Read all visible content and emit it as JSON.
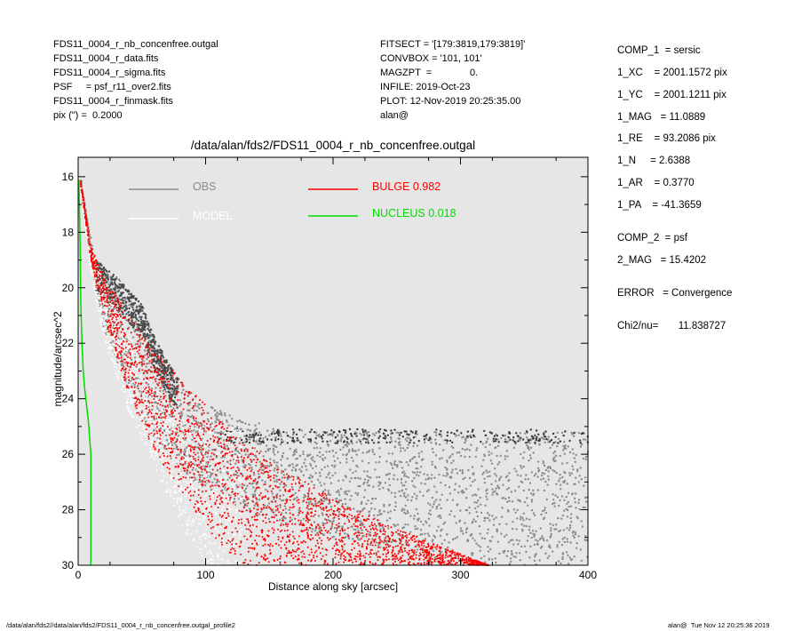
{
  "header": {
    "left": [
      "FDS11_0004_r_nb_concenfree.outgal",
      "FDS11_0004_r_data.fits",
      "FDS11_0004_r_sigma.fits",
      "PSF     = psf_r11_over2.fits",
      "FDS11_0004_r_finmask.fits",
      "pix (\") =  0.2000"
    ],
    "middle": [
      "FITSECT = '[179:3819,179:3819]'",
      "CONVBOX = '101, 101'",
      "MAGZPT  =              0.",
      "INFILE: 2019-Oct-23",
      "PLOT: 12-Nov-2019 20:25:35.00",
      "alan@"
    ]
  },
  "params": [
    "COMP_1  = sersic",
    "1_XC    = 2001.1572 pix",
    "1_YC    = 2001.1211 pix",
    "1_MAG   = 11.0889",
    "1_RE    = 93.2086 pix",
    "1_N     = 2.6388",
    "1_AR    = 0.3770",
    "1_PA    = -41.3659",
    "COMP_2  = psf",
    "2_MAG   = 15.4202",
    "ERROR   = Convergence",
    "Chi2/nu=       11.838727"
  ],
  "footer": {
    "left": "/data/alan/fds2//data/alan/fds2/FDS11_0004_r_nb_concenfree.outgal_profile2",
    "right": "alan@  Tue Nov 12 20:25:36 2019"
  },
  "chart_data": {
    "type": "scatter",
    "title": "/data/alan/fds2/FDS11_0004_r_nb_concenfree.outgal",
    "xlabel": "Distance along sky [arcsec]",
    "ylabel": "magnitude/arcsec^2",
    "xlim": [
      0,
      400
    ],
    "ylim": [
      30,
      15.3
    ],
    "y_inverted": true,
    "x_ticks": [
      "0",
      "100",
      "200",
      "300",
      "400"
    ],
    "y_ticks": [
      "16",
      "18",
      "20",
      "22",
      "24",
      "26",
      "28",
      "30"
    ],
    "grid": false,
    "plot_background": "#e6e6e6",
    "legend": [
      {
        "label": "OBS",
        "color": "#8c8c8c"
      },
      {
        "label": "MODEL",
        "color": "#ffffff"
      },
      {
        "label": "BULGE  0.982",
        "color": "#ff0000"
      },
      {
        "label": "NUCLEUS  0.018",
        "color": "#00dd00"
      }
    ],
    "series": [
      {
        "name": "OBS",
        "color": "#8c8c8c",
        "upper_envelope": {
          "x": [
            2,
            8,
            14,
            30,
            50,
            60,
            72,
            90,
            120,
            160,
            200,
            260,
            320,
            400
          ],
          "y": [
            16,
            17.8,
            19.0,
            19.6,
            20.6,
            21.8,
            22.8,
            24.0,
            24.6,
            25.1,
            25.2,
            25.2,
            25.2,
            25.2
          ]
        },
        "lower_envelope": {
          "x": [
            2,
            10,
            20,
            40,
            60,
            80,
            110,
            150,
            200,
            260,
            330,
            400
          ],
          "y": [
            16.5,
            19.0,
            21.5,
            23.8,
            25.4,
            26.6,
            27.6,
            28.4,
            29.0,
            29.6,
            30.0,
            30.0
          ]
        }
      },
      {
        "name": "MODEL",
        "color": "#ffffff",
        "upper_envelope": {
          "x": [
            2,
            10,
            20,
            40,
            60,
            80,
            100,
            130
          ],
          "y": [
            16.2,
            18.6,
            19.8,
            21.6,
            23.6,
            24.6,
            24.9,
            25.0
          ]
        },
        "lower_envelope": {
          "x": [
            2,
            10,
            20,
            40,
            60,
            80,
            100
          ],
          "y": [
            16.5,
            19.5,
            21.8,
            24.5,
            26.5,
            28.5,
            30.0
          ]
        }
      },
      {
        "name": "BULGE  0.982",
        "color": "#ff0000",
        "upper_envelope": {
          "x": [
            2,
            10,
            20,
            40,
            60,
            80,
            110,
            150,
            200,
            250,
            300,
            322
          ],
          "y": [
            16.1,
            18.5,
            19.6,
            21.0,
            22.3,
            23.3,
            24.7,
            26.2,
            27.6,
            28.7,
            29.6,
            30.0
          ]
        },
        "lower_envelope": {
          "x": [
            2,
            10,
            20,
            40,
            60,
            80,
            100,
            120,
            130
          ],
          "y": [
            16.3,
            19.0,
            21.0,
            23.9,
            25.9,
            27.3,
            28.6,
            29.7,
            30.0
          ]
        }
      },
      {
        "name": "NUCLEUS  0.018",
        "color": "#00dd00",
        "x": [
          0.5,
          1,
          1.5,
          2,
          3,
          4,
          5,
          6,
          8,
          10,
          10,
          10
        ],
        "y": [
          16.1,
          17.0,
          18.5,
          20.5,
          22.0,
          23.0,
          23.6,
          24.0,
          24.8,
          26.0,
          28.0,
          30.0
        ]
      }
    ]
  }
}
